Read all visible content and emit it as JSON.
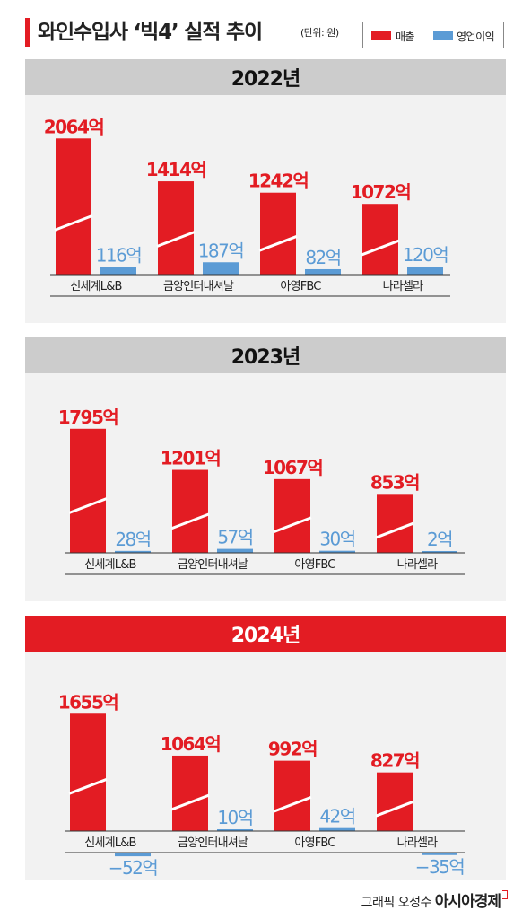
{
  "header": {
    "title": "와인수입사 ‘빅4’ 실적 추이",
    "unit": "(단위: 원)",
    "legend": {
      "revenue": "매출",
      "operating_profit": "영업이익"
    }
  },
  "colors": {
    "revenue": "#e31c23",
    "operating_profit": "#5b9bd5",
    "header_inactive": "#cccccc",
    "header_active": "#e31c23"
  },
  "credit": {
    "text": "그래픽 오성수",
    "brand": "아시아경제"
  },
  "chart_data": [
    {
      "type": "bar",
      "title": "2022년",
      "categories": [
        "신세계L&B",
        "금양인터내셔날",
        "아영FBC",
        "나라셀라"
      ],
      "series": [
        {
          "name": "매출",
          "values": [
            2064,
            1414,
            1242,
            1072
          ],
          "labels": [
            "2064억",
            "1414억",
            "1242억",
            "1072억"
          ]
        },
        {
          "name": "영업이익",
          "values": [
            116,
            187,
            82,
            120
          ],
          "labels": [
            "116억",
            "187억",
            "82억",
            "120억"
          ]
        }
      ],
      "unit": "억"
    },
    {
      "type": "bar",
      "title": "2023년",
      "categories": [
        "신세계L&B",
        "금양인터내셔날",
        "아영FBC",
        "나라셀라"
      ],
      "series": [
        {
          "name": "매출",
          "values": [
            1795,
            1201,
            1067,
            853
          ],
          "labels": [
            "1795억",
            "1201억",
            "1067억",
            "853억"
          ]
        },
        {
          "name": "영업이익",
          "values": [
            28,
            57,
            30,
            2
          ],
          "labels": [
            "28억",
            "57억",
            "30억",
            "2억"
          ]
        }
      ],
      "unit": "억"
    },
    {
      "type": "bar",
      "title": "2024년",
      "categories": [
        "신세계L&B",
        "금양인터내셔날",
        "아영FBC",
        "나라셀라"
      ],
      "series": [
        {
          "name": "매출",
          "values": [
            1655,
            1064,
            992,
            827
          ],
          "labels": [
            "1655억",
            "1064억",
            "992억",
            "827억"
          ]
        },
        {
          "name": "영업이익",
          "values": [
            -52,
            10,
            42,
            -35
          ],
          "labels": [
            "−52억",
            "10억",
            "42억",
            "−35억"
          ]
        }
      ],
      "unit": "억"
    }
  ]
}
